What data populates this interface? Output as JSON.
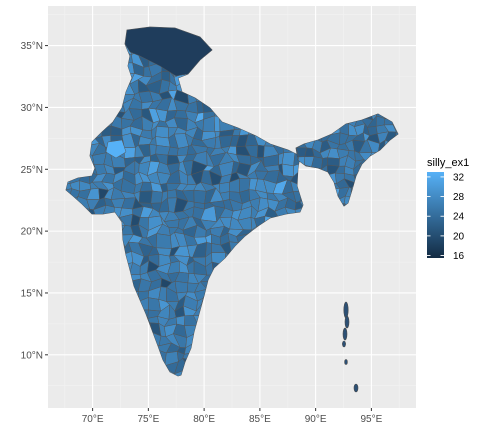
{
  "map": {
    "type": "choropleth",
    "region": "India (districts)",
    "x_axis": {
      "range": [
        66,
        99
      ],
      "ticks": [
        {
          "value": 70,
          "label": "70°E"
        },
        {
          "value": 75,
          "label": "75°E"
        },
        {
          "value": 80,
          "label": "80°E"
        },
        {
          "value": 85,
          "label": "85°E"
        },
        {
          "value": 90,
          "label": "90°E"
        },
        {
          "value": 95,
          "label": "95°E"
        }
      ]
    },
    "y_axis": {
      "range": [
        5.7,
        38.2
      ],
      "ticks": [
        {
          "value": 10,
          "label": "10°N"
        },
        {
          "value": 15,
          "label": "15°N"
        },
        {
          "value": 20,
          "label": "20°N"
        },
        {
          "value": 25,
          "label": "25°N"
        },
        {
          "value": 30,
          "label": "30°N"
        },
        {
          "value": 35,
          "label": "35°N"
        }
      ]
    },
    "legend": {
      "title": "silly_ex1",
      "placement": "right",
      "min": 15.5,
      "max": 33,
      "breaks": [
        {
          "value": 16,
          "label": "16"
        },
        {
          "value": 20,
          "label": "20"
        },
        {
          "value": 24,
          "label": "24"
        },
        {
          "value": 28,
          "label": "28"
        },
        {
          "value": 32,
          "label": "32"
        }
      ],
      "color_low": "#132b43",
      "color_high": "#56b1f7"
    },
    "colors": {
      "panel_background": "#ebebeb",
      "grid_major": "#ffffff",
      "grid_minor": "#f2f2f2",
      "district_border": "#575757",
      "fill_low": "#132b43",
      "fill_high": "#56b1f7"
    }
  }
}
